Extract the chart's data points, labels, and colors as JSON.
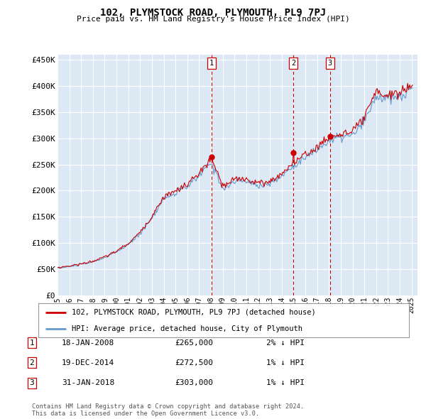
{
  "title": "102, PLYMSTOCK ROAD, PLYMOUTH, PL9 7PJ",
  "subtitle": "Price paid vs. HM Land Registry's House Price Index (HPI)",
  "ylabel_ticks": [
    "£0",
    "£50K",
    "£100K",
    "£150K",
    "£200K",
    "£250K",
    "£300K",
    "£350K",
    "£400K",
    "£450K"
  ],
  "ytick_values": [
    0,
    50000,
    100000,
    150000,
    200000,
    250000,
    300000,
    350000,
    400000,
    450000
  ],
  "ylim": [
    0,
    460000
  ],
  "xlim_start": 1995.0,
  "xlim_end": 2025.5,
  "background_color": "#dce9f5",
  "plot_bg_color": "#dce9f5",
  "grid_color": "#ffffff",
  "sale_color": "#cc0000",
  "hpi_color": "#6699cc",
  "sale_label": "102, PLYMSTOCK ROAD, PLYMOUTH, PL9 7PJ (detached house)",
  "hpi_label": "HPI: Average price, detached house, City of Plymouth",
  "transactions": [
    {
      "num": 1,
      "date": "18-JAN-2008",
      "price": 265000,
      "pct": "2%",
      "dir": "↓",
      "year": 2008.05
    },
    {
      "num": 2,
      "date": "19-DEC-2014",
      "price": 272500,
      "pct": "1%",
      "dir": "↓",
      "year": 2014.97
    },
    {
      "num": 3,
      "date": "31-JAN-2018",
      "price": 303000,
      "pct": "1%",
      "dir": "↓",
      "year": 2018.08
    }
  ],
  "footer": "Contains HM Land Registry data © Crown copyright and database right 2024.\nThis data is licensed under the Open Government Licence v3.0.",
  "xtick_years": [
    1995,
    1996,
    1997,
    1998,
    1999,
    2000,
    2001,
    2002,
    2003,
    2004,
    2005,
    2006,
    2007,
    2008,
    2009,
    2010,
    2011,
    2012,
    2013,
    2014,
    2015,
    2016,
    2017,
    2018,
    2019,
    2020,
    2021,
    2022,
    2023,
    2024,
    2025
  ]
}
